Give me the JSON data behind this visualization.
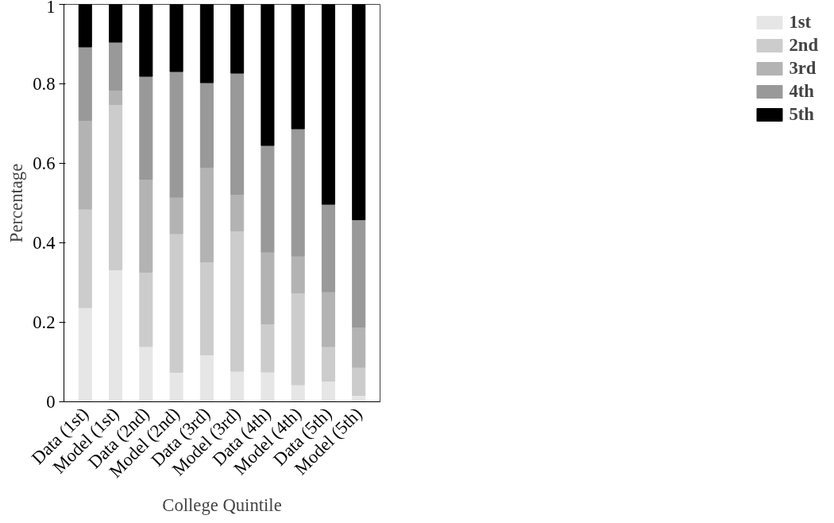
{
  "chart_data": {
    "type": "bar",
    "stacked": true,
    "xlabel": "College Quintile",
    "ylabel": "Percentage",
    "categories": [
      "Data (1st)",
      "Model (1st)",
      "Data (2nd)",
      "Model (2nd)",
      "Data (3rd)",
      "Model (3rd)",
      "Data (4th)",
      "Model (4th)",
      "Data (5th)",
      "Model (5th)"
    ],
    "series": [
      {
        "name": "1st",
        "color": "#e6e6e6",
        "values": [
          0.237,
          0.332,
          0.139,
          0.074,
          0.118,
          0.077,
          0.075,
          0.043,
          0.052,
          0.016
        ]
      },
      {
        "name": "2nd",
        "color": "#cccccc",
        "values": [
          0.248,
          0.416,
          0.187,
          0.349,
          0.234,
          0.353,
          0.121,
          0.231,
          0.087,
          0.071
        ]
      },
      {
        "name": "3rd",
        "color": "#b3b3b3",
        "values": [
          0.223,
          0.036,
          0.234,
          0.092,
          0.238,
          0.092,
          0.181,
          0.093,
          0.138,
          0.101
        ]
      },
      {
        "name": "4th",
        "color": "#999999",
        "values": [
          0.185,
          0.121,
          0.259,
          0.316,
          0.213,
          0.305,
          0.268,
          0.32,
          0.22,
          0.27
        ]
      },
      {
        "name": "5th",
        "color": "#000000",
        "values": [
          0.107,
          0.095,
          0.181,
          0.169,
          0.197,
          0.173,
          0.355,
          0.313,
          0.503,
          0.542
        ]
      }
    ],
    "ylim": [
      0,
      1
    ],
    "yticks": [
      0,
      0.2,
      0.4,
      0.6,
      0.8,
      1
    ],
    "grid": false,
    "legend": "right"
  }
}
